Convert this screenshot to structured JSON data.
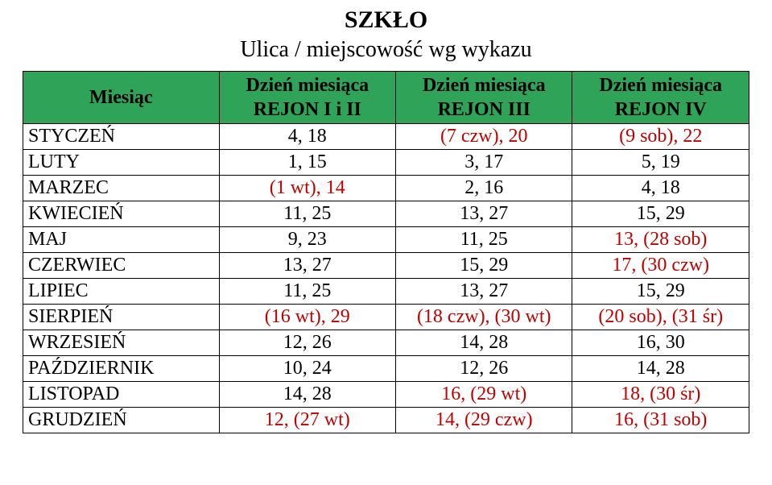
{
  "title": "SZKŁO",
  "subtitle": "Ulica / miejscowość wg wykazu",
  "theme": {
    "header_bg": "#2fa458",
    "alt_text_color": "#c10000",
    "background": "#ffffff"
  },
  "columns": {
    "month_header": "Miesiąc",
    "day_line": "Dzień miesiąca",
    "rejon_labels": [
      "REJON I i II",
      "REJON III",
      "REJON  IV"
    ]
  },
  "rows": [
    {
      "month": "STYCZEŃ",
      "cells": [
        {
          "text": "4, 18",
          "alt": false
        },
        {
          "text": "(7 czw), 20",
          "alt": true
        },
        {
          "text": "(9 sob), 22",
          "alt": true
        }
      ]
    },
    {
      "month": "LUTY",
      "cells": [
        {
          "text": "1, 15",
          "alt": false
        },
        {
          "text": "3, 17",
          "alt": false
        },
        {
          "text": "5, 19",
          "alt": false
        }
      ]
    },
    {
      "month": "MARZEC",
      "cells": [
        {
          "text": "(1 wt), 14",
          "alt": true
        },
        {
          "text": "2, 16",
          "alt": false
        },
        {
          "text": "4, 18",
          "alt": false
        }
      ]
    },
    {
      "month": "KWIECIEŃ",
      "cells": [
        {
          "text": "11, 25",
          "alt": false
        },
        {
          "text": "13, 27",
          "alt": false
        },
        {
          "text": "15, 29",
          "alt": false
        }
      ]
    },
    {
      "month": "MAJ",
      "cells": [
        {
          "text": "9, 23",
          "alt": false
        },
        {
          "text": "11, 25",
          "alt": false
        },
        {
          "text": "13, (28 sob)",
          "alt": true
        }
      ]
    },
    {
      "month": "CZERWIEC",
      "cells": [
        {
          "text": "13, 27",
          "alt": false
        },
        {
          "text": "15, 29",
          "alt": false
        },
        {
          "text": "17, (30 czw)",
          "alt": true
        }
      ]
    },
    {
      "month": "LIPIEC",
      "cells": [
        {
          "text": "11, 25",
          "alt": false
        },
        {
          "text": "13, 27",
          "alt": false
        },
        {
          "text": "15, 29",
          "alt": false
        }
      ]
    },
    {
      "month": "SIERPIEŃ",
      "cells": [
        {
          "text": "(16 wt), 29",
          "alt": true
        },
        {
          "text": "(18 czw), (30 wt)",
          "alt": true
        },
        {
          "text": "(20 sob), (31 śr)",
          "alt": true
        }
      ]
    },
    {
      "month": "WRZESIEŃ",
      "cells": [
        {
          "text": "12, 26",
          "alt": false
        },
        {
          "text": "14, 28",
          "alt": false
        },
        {
          "text": "16, 30",
          "alt": false
        }
      ]
    },
    {
      "month": "PAŹDZIERNIK",
      "cells": [
        {
          "text": "10, 24",
          "alt": false
        },
        {
          "text": "12, 26",
          "alt": false
        },
        {
          "text": "14, 28",
          "alt": false
        }
      ]
    },
    {
      "month": "LISTOPAD",
      "cells": [
        {
          "text": "14, 28",
          "alt": false
        },
        {
          "text": "16, (29 wt)",
          "alt": true
        },
        {
          "text": "18, (30 śr)",
          "alt": true
        }
      ]
    },
    {
      "month": "GRUDZIEŃ",
      "cells": [
        {
          "text": "12, (27 wt)",
          "alt": true
        },
        {
          "text": "14, (29 czw)",
          "alt": true
        },
        {
          "text": "16, (31 sob)",
          "alt": true
        }
      ]
    }
  ]
}
